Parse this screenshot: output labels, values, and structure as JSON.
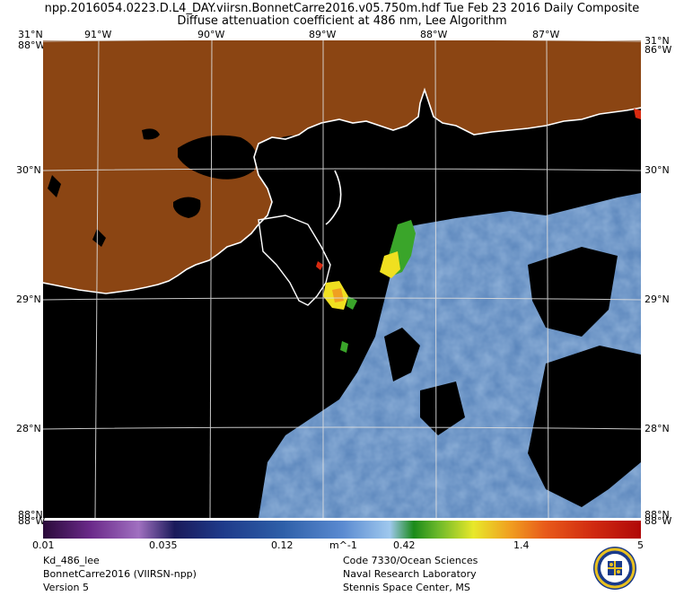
{
  "header": {
    "line1": "npp.2016054.0223.D.L4_DAY.viirsn.BonnetCarre2016.v05.750m.hdf    Tue Feb 23 2016 Daily Composite",
    "line2": "Diffuse attenuation coefficient at 486 nm, Lee Algorithm"
  },
  "axes": {
    "lon_labels": [
      "91°W",
      "90°W",
      "89°W",
      "88°W",
      "87°W"
    ],
    "lat_labels": [
      "30°N",
      "29°N",
      "28°N"
    ],
    "corner_top_left_lat": "31°N",
    "corner_top_left_lon": "88°W",
    "corner_top_right_lat": "31°N",
    "corner_top_right_lon": "86°W",
    "corner_bottom_left_lat": "88°N",
    "corner_bottom_left_lon": "88°W",
    "corner_bottom_right_lat": "88°N",
    "corner_bottom_right_lon": "88°W"
  },
  "colorbar": {
    "ticks": [
      "0.01",
      "0.035",
      "0.12",
      "0.42",
      "1.4",
      "5"
    ],
    "unit": "m^-1"
  },
  "footer": {
    "left": [
      "Kd_486_lee",
      "BonnetCarre2016 (VIIRSN-npp)",
      "Version 5"
    ],
    "right": [
      "Code 7330/Ocean Sciences",
      "Naval Research Laboratory",
      "Stennis Space Center, MS"
    ]
  },
  "colors": {
    "land": "#8b4513",
    "water_nodata": "#000000",
    "coast": "#ffffff",
    "graticule": "#dddddd",
    "ocean_low": "#5b86bc",
    "plume_green": "#3aa52a",
    "plume_yellow": "#f0e020",
    "plume_red": "#d82a10"
  },
  "icons": {
    "logo": "navy-lab-seal-icon"
  }
}
